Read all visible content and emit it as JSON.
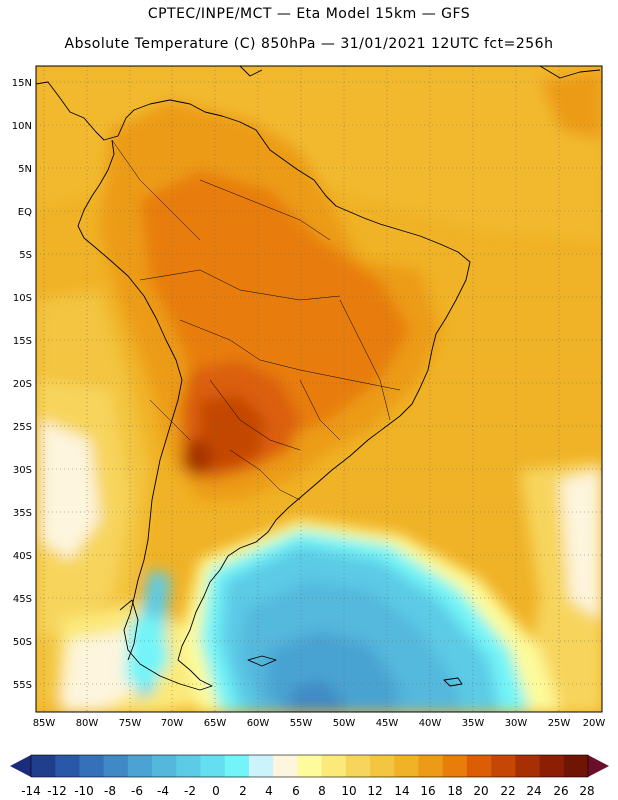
{
  "header": {
    "line1": "CPTEC/INPE/MCT —  Eta Model 15km — GFS",
    "line2": "Absolute Temperature (C) 850hPa — 31/01/2021 12UTC fct=256h"
  },
  "map": {
    "lat_labels": [
      "15N",
      "10N",
      "5N",
      "EQ",
      "5S",
      "10S",
      "15S",
      "20S",
      "25S",
      "30S",
      "35S",
      "40S",
      "45S",
      "50S",
      "55S"
    ],
    "lon_labels": [
      "85W",
      "80W",
      "75W",
      "70W",
      "65W",
      "60W",
      "55W",
      "50W",
      "45W",
      "40W",
      "35W",
      "30W",
      "25W",
      "20W"
    ],
    "lat_range": [
      17.5,
      -57.5
    ],
    "lon_range": [
      -86,
      -20
    ],
    "grid": "dotted"
  },
  "colorbar": {
    "labels": [
      "-14",
      "-12",
      "-10",
      "-8",
      "-6",
      "-4",
      "-2",
      "0",
      "2",
      "4",
      "6",
      "8",
      "10",
      "12",
      "14",
      "16",
      "18",
      "20",
      "22",
      "24",
      "26",
      "28"
    ],
    "colors": [
      "#1f3f8c",
      "#2a58a8",
      "#3471b8",
      "#3f8ac6",
      "#4aa3d2",
      "#54b8dd",
      "#5ccbe6",
      "#64def0",
      "#73f4f8",
      "#ccf2fb",
      "#fdf5dd",
      "#fdfb9b",
      "#fbe97a",
      "#f7d55d",
      "#f3c540",
      "#f0b226",
      "#ec9b18",
      "#e87d0c",
      "#db5e07",
      "#c44706",
      "#a63004",
      "#8c1e03",
      "#701505"
    ],
    "left_arrow_color": "#1a2c7a",
    "right_arrow_color": "#6a0f2a"
  }
}
